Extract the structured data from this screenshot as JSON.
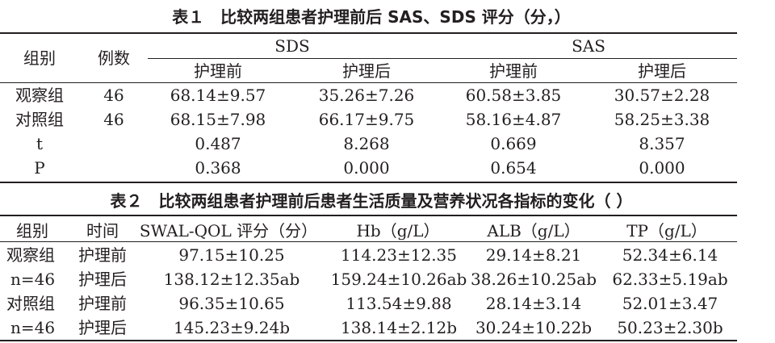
{
  "table1": {
    "caption": "表１　比较两组患者护理前后 SAS、SDS 评分（分，）",
    "header": {
      "group": "组别",
      "count": "例数",
      "sds": "SDS",
      "sas": "SAS",
      "sub": [
        "护理前",
        "护理后",
        "护理前",
        "护理后"
      ]
    },
    "rows": [
      {
        "label": "观察组",
        "n": "46",
        "values": [
          "68.14±9.57",
          "35.26±7.26",
          "60.58±3.85",
          "30.57±2.28"
        ]
      },
      {
        "label": "对照组",
        "n": "46",
        "values": [
          "68.15±7.98",
          "66.17±9.75",
          "58.16±4.87",
          "58.25±3.38"
        ]
      },
      {
        "label": "t",
        "n": "",
        "values": [
          "0.487",
          "8.268",
          "0.669",
          "8.357"
        ]
      },
      {
        "label": "P",
        "n": "",
        "values": [
          "0.368",
          "0.000",
          "0.654",
          "0.000"
        ]
      }
    ]
  },
  "table2": {
    "caption": "表２　比较两组患者护理前后患者生活质量及营养状况各指标的变化（ ）",
    "headers": [
      "组别",
      "时间",
      "SWAL-QOL 评分（分）",
      "Hb（g/L）",
      "ALB（g/L）",
      "TP（g/L）"
    ],
    "rows": [
      {
        "group": "观察组",
        "time": "护理前",
        "values": [
          "97.15±10.25",
          "114.23±12.35",
          "29.14±8.21",
          "52.34±6.14"
        ]
      },
      {
        "group": "n=46",
        "time": "护理后",
        "values": [
          "138.12±12.35ab",
          "159.24±10.26ab",
          "38.26±10.25ab",
          "62.33±5.19ab"
        ]
      },
      {
        "group": "对照组",
        "time": "护理前",
        "values": [
          "96.35±10.65",
          "113.54±9.88",
          "28.14±3.14",
          "52.01±3.47"
        ]
      },
      {
        "group": "n=46",
        "time": "护理后",
        "values": [
          "145.23±9.24b",
          "138.14±2.12b",
          "30.24±10.22b",
          "50.23±2.30b"
        ]
      }
    ]
  }
}
